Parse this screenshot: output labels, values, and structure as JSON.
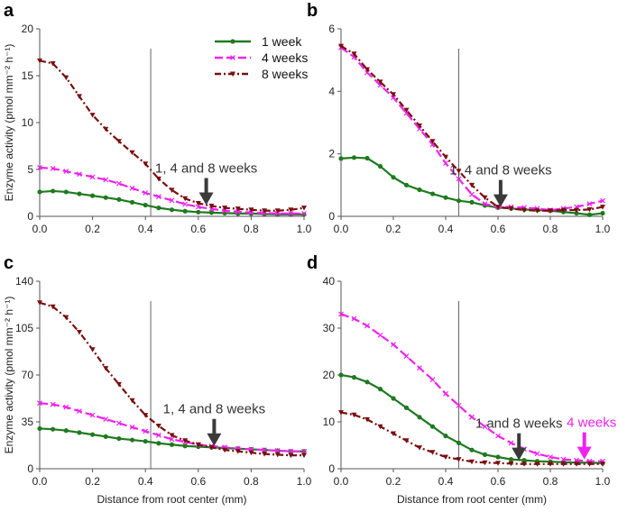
{
  "colors": {
    "w1": "#1f7a1f",
    "w4": "#ee22ee",
    "w8": "#7a0f0f",
    "arrow": "#3a3a3a",
    "arrow_pink": "#ee22ee"
  },
  "legend": [
    "1 week",
    "4 weeks",
    "8 weeks"
  ],
  "chart_data": [
    {
      "id": "a",
      "type": "line",
      "panel_label": "a",
      "xlabel": "",
      "ylabel": "Enzyme activity (pmol mm⁻² h⁻¹)",
      "xlim": [
        0,
        1
      ],
      "ylim": [
        0,
        20
      ],
      "xticks": [
        "0.0",
        "0.2",
        "0.4",
        "0.6",
        "0.8",
        "1.0"
      ],
      "yticks": [
        "0",
        "5",
        "10",
        "15",
        "20"
      ],
      "vline_x": 0.42,
      "annotations": [
        {
          "text": "1, 4 and 8 weeks",
          "arrow_x": 0.63,
          "arrow_y": 1.2,
          "color": "arrow"
        }
      ],
      "series": [
        {
          "name": "1 week",
          "key": "w1",
          "x": [
            0,
            0.05,
            0.1,
            0.15,
            0.2,
            0.25,
            0.3,
            0.35,
            0.4,
            0.45,
            0.5,
            0.55,
            0.6,
            0.65,
            0.7,
            0.75,
            0.8,
            0.85,
            0.9,
            0.95,
            1.0
          ],
          "values": [
            2.6,
            2.7,
            2.6,
            2.4,
            2.2,
            2.0,
            1.8,
            1.5,
            1.2,
            0.9,
            0.7,
            0.55,
            0.45,
            0.4,
            0.35,
            0.3,
            0.3,
            0.25,
            0.2,
            0.2,
            0.2
          ]
        },
        {
          "name": "4 weeks",
          "key": "w4",
          "x": [
            0,
            0.05,
            0.1,
            0.15,
            0.2,
            0.25,
            0.3,
            0.35,
            0.4,
            0.45,
            0.5,
            0.55,
            0.6,
            0.65,
            0.7,
            0.75,
            0.8,
            0.85,
            0.9,
            0.95,
            1.0
          ],
          "values": [
            5.2,
            5.1,
            4.8,
            4.5,
            4.2,
            3.9,
            3.5,
            3.0,
            2.5,
            2.1,
            1.7,
            1.3,
            1.0,
            0.8,
            0.6,
            0.5,
            0.4,
            0.35,
            0.3,
            0.3,
            0.3
          ]
        },
        {
          "name": "8 weeks",
          "key": "w8",
          "x": [
            0,
            0.05,
            0.1,
            0.15,
            0.2,
            0.25,
            0.3,
            0.35,
            0.4,
            0.45,
            0.5,
            0.55,
            0.6,
            0.65,
            0.7,
            0.75,
            0.8,
            0.85,
            0.9,
            0.95,
            1.0
          ],
          "values": [
            16.6,
            16.3,
            14.8,
            12.8,
            10.8,
            9.3,
            8.0,
            6.8,
            5.6,
            4.0,
            2.8,
            1.9,
            1.4,
            1.1,
            0.9,
            0.8,
            0.7,
            0.6,
            0.6,
            0.7,
            0.9
          ]
        }
      ]
    },
    {
      "id": "b",
      "type": "line",
      "panel_label": "b",
      "xlabel": "",
      "ylabel": "",
      "xlim": [
        0,
        1
      ],
      "ylim": [
        0,
        6
      ],
      "xticks": [
        "0.0",
        "0.2",
        "0.4",
        "0.6",
        "0.8",
        "1.0"
      ],
      "yticks": [
        "0",
        "2",
        "4",
        "6"
      ],
      "vline_x": 0.45,
      "annotations": [
        {
          "text": "1, 4 and 8 weeks",
          "arrow_x": 0.61,
          "arrow_y": 0.3,
          "color": "arrow"
        }
      ],
      "series": [
        {
          "name": "1 week",
          "key": "w1",
          "x": [
            0,
            0.05,
            0.1,
            0.15,
            0.2,
            0.25,
            0.3,
            0.35,
            0.4,
            0.45,
            0.5,
            0.55,
            0.6,
            0.65,
            0.7,
            0.75,
            0.8,
            0.85,
            0.9,
            0.95,
            1.0
          ],
          "values": [
            1.85,
            1.88,
            1.86,
            1.6,
            1.25,
            1.0,
            0.85,
            0.72,
            0.6,
            0.5,
            0.45,
            0.35,
            0.28,
            0.25,
            0.22,
            0.2,
            0.18,
            0.14,
            0.1,
            0.05,
            0.1
          ]
        },
        {
          "name": "4 weeks",
          "key": "w4",
          "x": [
            0,
            0.05,
            0.1,
            0.15,
            0.2,
            0.25,
            0.3,
            0.35,
            0.4,
            0.45,
            0.5,
            0.55,
            0.6,
            0.65,
            0.7,
            0.75,
            0.8,
            0.85,
            0.9,
            0.95,
            1.0
          ],
          "values": [
            5.4,
            5.1,
            4.6,
            4.2,
            3.8,
            3.3,
            2.8,
            2.3,
            1.7,
            1.2,
            0.7,
            0.4,
            0.3,
            0.3,
            0.28,
            0.25,
            0.2,
            0.25,
            0.3,
            0.4,
            0.5
          ]
        },
        {
          "name": "8 weeks",
          "key": "w8",
          "x": [
            0,
            0.05,
            0.1,
            0.15,
            0.2,
            0.25,
            0.3,
            0.35,
            0.4,
            0.45,
            0.5,
            0.55,
            0.6,
            0.65,
            0.7,
            0.75,
            0.8,
            0.85,
            0.9,
            0.95,
            1.0
          ],
          "values": [
            5.45,
            5.2,
            4.7,
            4.3,
            3.9,
            3.4,
            2.9,
            2.4,
            1.9,
            1.45,
            1.0,
            0.6,
            0.3,
            0.25,
            0.2,
            0.18,
            0.18,
            0.2,
            0.2,
            0.22,
            0.3
          ]
        }
      ]
    },
    {
      "id": "c",
      "type": "line",
      "panel_label": "c",
      "xlabel": "Distance from root center (mm)",
      "ylabel": "Enzyme activity (pmol mm⁻² h⁻¹)",
      "xlim": [
        0,
        1
      ],
      "ylim": [
        0,
        140
      ],
      "xticks": [
        "0.0",
        "0.2",
        "0.4",
        "0.6",
        "0.8",
        "1.0"
      ],
      "yticks": [
        "0",
        "35",
        "70",
        "105",
        "140"
      ],
      "vline_x": 0.42,
      "annotations": [
        {
          "text": "1, 4 and 8 weeks",
          "arrow_x": 0.66,
          "arrow_y": 17,
          "color": "arrow"
        }
      ],
      "series": [
        {
          "name": "1 week",
          "key": "w1",
          "x": [
            0,
            0.05,
            0.1,
            0.15,
            0.2,
            0.25,
            0.3,
            0.35,
            0.4,
            0.45,
            0.5,
            0.55,
            0.6,
            0.65,
            0.7,
            0.75,
            0.8,
            0.85,
            0.9,
            0.95,
            1.0
          ],
          "values": [
            30,
            29.5,
            28.5,
            27,
            25.5,
            24,
            22.5,
            21.5,
            20.5,
            19,
            18,
            17,
            16.5,
            16,
            15.5,
            15,
            14.5,
            14,
            13.5,
            13,
            13
          ]
        },
        {
          "name": "4 weeks",
          "key": "w4",
          "x": [
            0,
            0.05,
            0.1,
            0.15,
            0.2,
            0.25,
            0.3,
            0.35,
            0.4,
            0.45,
            0.5,
            0.55,
            0.6,
            0.65,
            0.7,
            0.75,
            0.8,
            0.85,
            0.9,
            0.95,
            1.0
          ],
          "values": [
            49,
            48,
            46,
            43,
            40,
            37,
            34,
            31,
            28,
            25,
            22,
            20,
            18,
            17,
            16,
            15,
            14.5,
            14,
            13.5,
            13,
            13
          ]
        },
        {
          "name": "8 weeks",
          "key": "w8",
          "x": [
            0,
            0.05,
            0.1,
            0.15,
            0.2,
            0.25,
            0.3,
            0.35,
            0.4,
            0.45,
            0.5,
            0.55,
            0.6,
            0.65,
            0.7,
            0.75,
            0.8,
            0.85,
            0.9,
            0.95,
            1.0
          ],
          "values": [
            124,
            121,
            113,
            102,
            89,
            75,
            63,
            51,
            40,
            32,
            25,
            21,
            18,
            16,
            14,
            13,
            12,
            11,
            10.5,
            10,
            10
          ]
        }
      ]
    },
    {
      "id": "d",
      "type": "line",
      "panel_label": "d",
      "xlabel": "Distance from root center (mm)",
      "ylabel": "",
      "xlim": [
        0,
        1
      ],
      "ylim": [
        0,
        40
      ],
      "xticks": [
        "0.0",
        "0.2",
        "0.4",
        "0.6",
        "0.8",
        "1.0"
      ],
      "yticks": [
        "0",
        "10",
        "20",
        "30",
        "40"
      ],
      "vline_x": 0.45,
      "annotations": [
        {
          "text": "1 and 8 weeks",
          "arrow_x": 0.68,
          "arrow_y": 1.8,
          "color": "arrow"
        },
        {
          "text": "4 weeks",
          "arrow_x": 0.93,
          "arrow_y": 2.0,
          "color": "arrow_pink"
        }
      ],
      "series": [
        {
          "name": "1 week",
          "key": "w1",
          "x": [
            0,
            0.05,
            0.1,
            0.15,
            0.2,
            0.25,
            0.3,
            0.35,
            0.4,
            0.45,
            0.5,
            0.55,
            0.6,
            0.65,
            0.7,
            0.75,
            0.8,
            0.85,
            0.9,
            0.95,
            1.0
          ],
          "values": [
            20,
            19.5,
            18.5,
            17,
            15,
            13,
            11,
            9,
            7,
            5.5,
            4,
            3,
            2.5,
            2,
            1.8,
            1.6,
            1.5,
            1.4,
            1.3,
            1.3,
            1.2
          ]
        },
        {
          "name": "4 weeks",
          "key": "w4",
          "x": [
            0,
            0.05,
            0.1,
            0.15,
            0.2,
            0.25,
            0.3,
            0.35,
            0.4,
            0.45,
            0.5,
            0.55,
            0.6,
            0.65,
            0.7,
            0.75,
            0.8,
            0.85,
            0.9,
            0.95,
            1.0
          ],
          "values": [
            33,
            32,
            30.5,
            28.5,
            26.5,
            24,
            21.5,
            19,
            16,
            13.5,
            11,
            9,
            7,
            5.5,
            4.2,
            3.2,
            2.5,
            2,
            1.8,
            1.6,
            1.6
          ]
        },
        {
          "name": "8 weeks",
          "key": "w8",
          "x": [
            0,
            0.05,
            0.1,
            0.15,
            0.2,
            0.25,
            0.3,
            0.35,
            0.4,
            0.45,
            0.5,
            0.55,
            0.6,
            0.65,
            0.7,
            0.75,
            0.8,
            0.85,
            0.9,
            0.95,
            1.0
          ],
          "values": [
            12,
            11.5,
            10.5,
            9,
            7.5,
            6,
            4.5,
            3.5,
            2.5,
            2,
            1.5,
            1.3,
            1.2,
            1.1,
            1,
            1,
            1,
            1,
            1,
            1,
            1
          ]
        }
      ]
    }
  ]
}
